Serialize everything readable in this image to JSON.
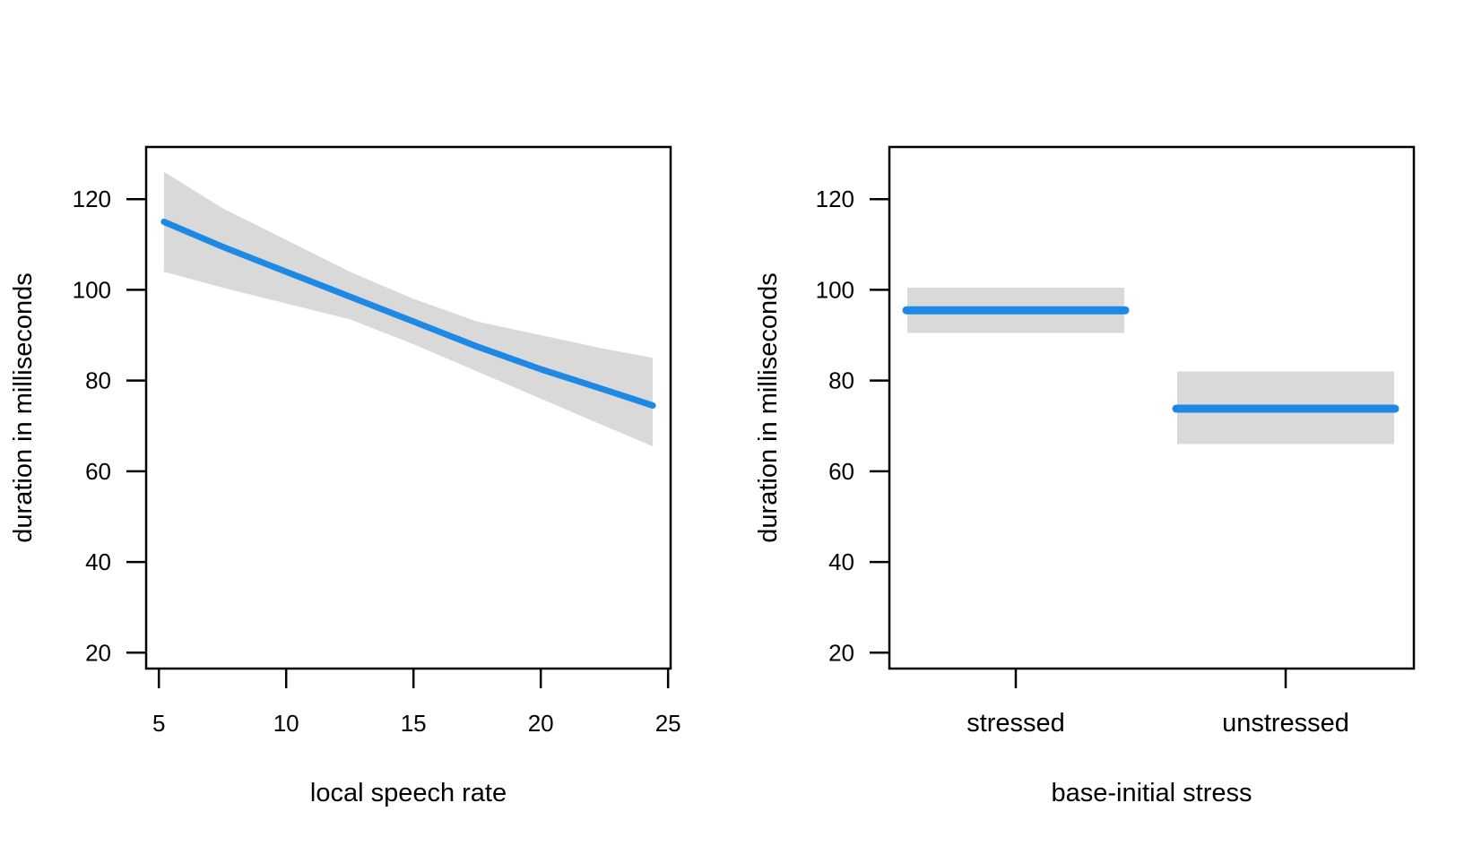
{
  "colors": {
    "line": "#1e88e5",
    "band": "#d9d9d9",
    "axis": "#000000"
  },
  "chart_data": [
    {
      "type": "line",
      "xlabel": "local speech rate",
      "ylabel": "duration in milliseconds",
      "xlim": [
        4.5,
        25.1
      ],
      "ylim": [
        16.5,
        131.5
      ],
      "xticks": [
        5,
        10,
        15,
        20,
        25
      ],
      "yticks": [
        20,
        40,
        60,
        80,
        100,
        120
      ],
      "series": [
        {
          "x": [
            5.2,
            7.5,
            10,
            12.5,
            15,
            17.5,
            20,
            22.5,
            24.4
          ],
          "y": [
            115,
            109.5,
            104,
            98.5,
            93,
            87.5,
            82.5,
            78,
            74.5
          ]
        }
      ],
      "band": {
        "x": [
          5.2,
          7.5,
          10,
          12.5,
          15,
          17.5,
          20,
          22.5,
          24.4
        ],
        "upper": [
          126,
          118,
          111,
          104,
          98,
          93,
          90,
          87,
          85
        ],
        "lower": [
          104,
          100.5,
          97,
          93.5,
          88,
          82,
          76,
          70,
          65.5
        ]
      }
    },
    {
      "type": "bar",
      "xlabel": "base-initial stress",
      "ylabel": "duration in milliseconds",
      "categories": [
        "stressed",
        "unstressed"
      ],
      "ylim": [
        16.5,
        131.5
      ],
      "yticks": [
        20,
        40,
        60,
        80,
        100,
        120
      ],
      "values": [
        95.5,
        73.8
      ],
      "lower": [
        90.5,
        66
      ],
      "upper": [
        100.5,
        82
      ]
    }
  ]
}
